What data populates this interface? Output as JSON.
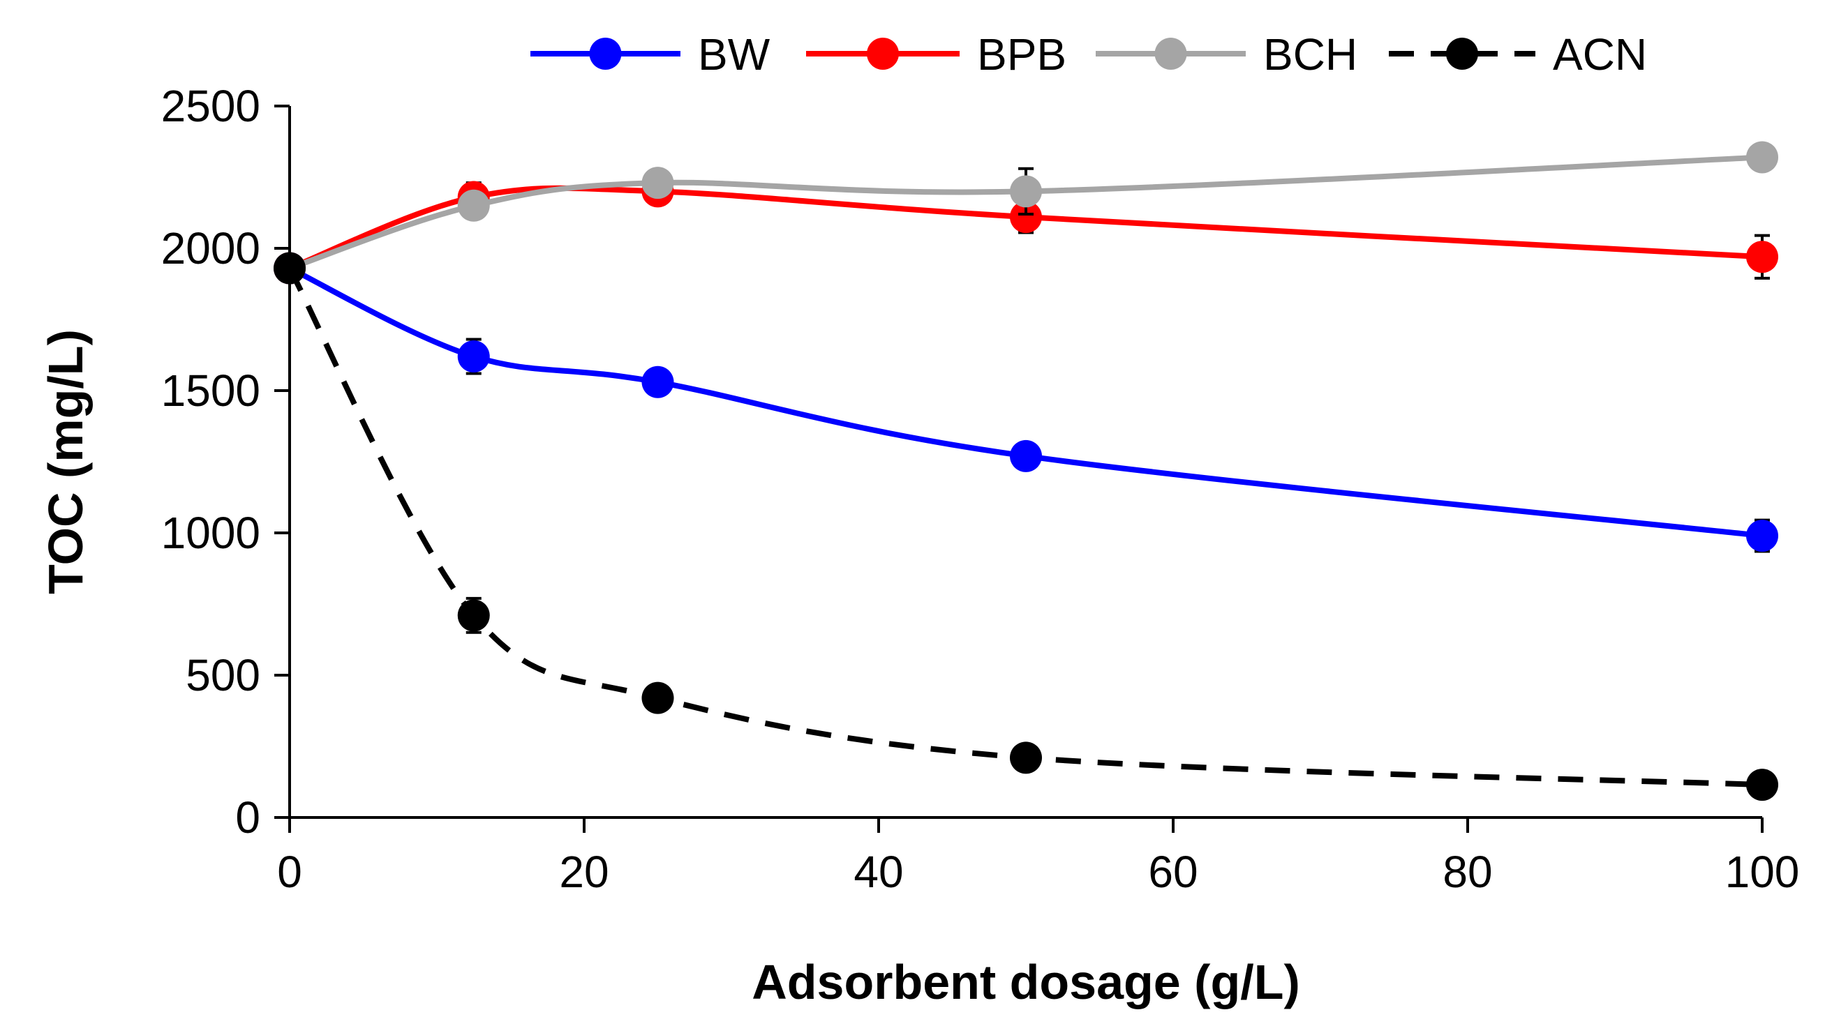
{
  "chart_data": {
    "type": "line",
    "title": "",
    "xlabel": "Adsorbent dosage (g/L)",
    "ylabel": "TOC (mg/L)",
    "xlim": [
      0,
      100
    ],
    "ylim": [
      0,
      2500
    ],
    "xticks": [
      0,
      20,
      40,
      60,
      80,
      100
    ],
    "yticks": [
      0,
      500,
      1000,
      1500,
      2000,
      2500
    ],
    "grid": false,
    "legend_position": "top",
    "x": [
      0,
      12.5,
      25,
      50,
      100
    ],
    "series": [
      {
        "name": "BW",
        "color": "#0000ff",
        "dashed": false,
        "values": [
          1930,
          1620,
          1530,
          1270,
          990
        ],
        "errors": [
          0,
          60,
          0,
          0,
          55
        ]
      },
      {
        "name": "BPB",
        "color": "#ff0000",
        "dashed": false,
        "values": [
          1930,
          2180,
          2200,
          2110,
          1970
        ],
        "errors": [
          0,
          50,
          45,
          55,
          75
        ]
      },
      {
        "name": "BCH",
        "color": "#a5a5a5",
        "dashed": false,
        "values": [
          1930,
          2150,
          2230,
          2200,
          2320
        ],
        "errors": [
          0,
          0,
          40,
          80,
          40
        ]
      },
      {
        "name": "ACN",
        "color": "#000000",
        "dashed": true,
        "values": [
          1930,
          710,
          420,
          210,
          115
        ],
        "errors": [
          0,
          60,
          40,
          0,
          0
        ]
      }
    ]
  }
}
